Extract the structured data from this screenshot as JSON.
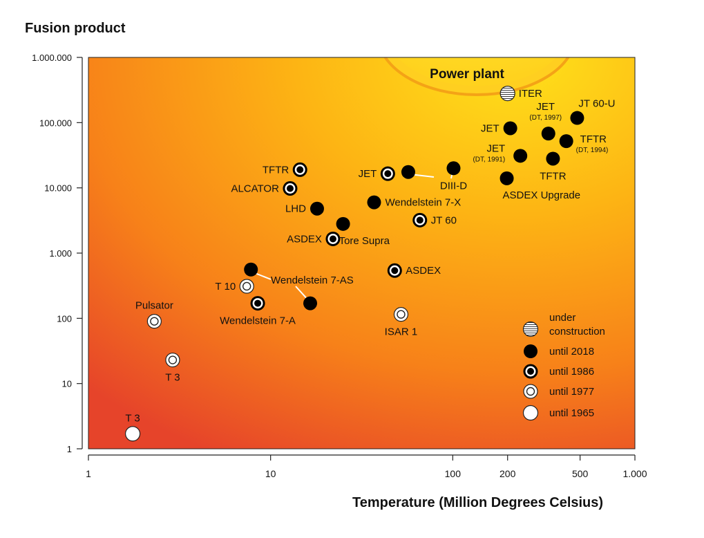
{
  "chart_data": {
    "type": "scatter",
    "title": "",
    "ylabel": "Fusion product",
    "xlabel": "Temperature  (Million Degrees Celsius)",
    "xscale": "log",
    "yscale": "log",
    "xlim": [
      1,
      1000
    ],
    "ylim": [
      1,
      1000000
    ],
    "x_ticks": [
      {
        "value": 1,
        "label": "1"
      },
      {
        "value": 10,
        "label": "10"
      },
      {
        "value": 100,
        "label": "100"
      },
      {
        "value": 200,
        "label": "200"
      },
      {
        "value": 500,
        "label": "500"
      },
      {
        "value": 1000,
        "label": "1.000"
      }
    ],
    "y_ticks": [
      {
        "value": 1,
        "label": "1"
      },
      {
        "value": 10,
        "label": "10"
      },
      {
        "value": 100,
        "label": "100"
      },
      {
        "value": 1000,
        "label": "1.000"
      },
      {
        "value": 10000,
        "label": "10.000"
      },
      {
        "value": 100000,
        "label": "100.000"
      },
      {
        "value": 1000000,
        "label": "1.000.000"
      }
    ],
    "region_label": "Power plant",
    "legend_placement": "bottom-right",
    "legend": [
      {
        "type": "construction",
        "label_lines": [
          "under",
          "construction"
        ]
      },
      {
        "type": "2018",
        "label_lines": [
          "until 2018"
        ]
      },
      {
        "type": "1986",
        "label_lines": [
          "until 1986"
        ]
      },
      {
        "type": "1977",
        "label_lines": [
          "until 1977"
        ]
      },
      {
        "type": "1965",
        "label_lines": [
          "until 1965"
        ]
      }
    ],
    "points": [
      {
        "label": "T 3",
        "x": 1.75,
        "y": 1.7,
        "type": "1965",
        "label_pos": "above"
      },
      {
        "label": "T 3",
        "x": 2.9,
        "y": 23,
        "type": "1977",
        "label_pos": "below"
      },
      {
        "label": "Pulsator",
        "x": 2.3,
        "y": 90,
        "type": "1977",
        "label_pos": "above"
      },
      {
        "label": "T 10",
        "x": 7.4,
        "y": 310,
        "type": "1977",
        "label_pos": "left"
      },
      {
        "label": "Wendelstein 7-A",
        "x": 8.5,
        "y": 170,
        "type": "1986",
        "label_pos": "below"
      },
      {
        "label": "",
        "x": 7.8,
        "y": 560,
        "type": "2018",
        "label_pos": "none"
      },
      {
        "label": "",
        "x": 16.5,
        "y": 170,
        "type": "2018",
        "label_pos": "none"
      },
      {
        "label": "Wendelstein 7-AS",
        "x": 0,
        "y": 0,
        "type": "label-only",
        "label_pos": "annotation"
      },
      {
        "label": "ASDEX",
        "x": 48,
        "y": 540,
        "type": "1986",
        "label_pos": "right"
      },
      {
        "label": "ISAR 1",
        "x": 52,
        "y": 115,
        "type": "1977",
        "label_pos": "below"
      },
      {
        "label": "TFTR",
        "x": 14.5,
        "y": 19000,
        "type": "1986",
        "label_pos": "left"
      },
      {
        "label": "ALCATOR",
        "x": 12.8,
        "y": 9800,
        "type": "1986",
        "label_pos": "left"
      },
      {
        "label": "LHD",
        "x": 18,
        "y": 4800,
        "type": "2018",
        "label_pos": "left"
      },
      {
        "label": "ASDEX",
        "x": 22,
        "y": 1650,
        "type": "1986",
        "label_pos": "left"
      },
      {
        "label": "Tore Supra",
        "x": 25,
        "y": 2800,
        "type": "2018",
        "label_pos": "below-right"
      },
      {
        "label": "Wendelstein 7-X",
        "x": 37,
        "y": 6000,
        "type": "2018",
        "label_pos": "right"
      },
      {
        "label": "JT 60",
        "x": 66,
        "y": 3200,
        "type": "1986",
        "label_pos": "right"
      },
      {
        "label": "JET",
        "x": 44,
        "y": 16500,
        "type": "1986",
        "label_pos": "left"
      },
      {
        "label": "",
        "x": 57,
        "y": 17500,
        "type": "2018",
        "label_pos": "none"
      },
      {
        "label": "DIII-D",
        "x": 101,
        "y": 20000,
        "type": "2018",
        "label_pos": "below"
      },
      {
        "label": "ASDEX Upgrade",
        "x": 198,
        "y": 14000,
        "type": "2018",
        "label_pos": "below-right"
      },
      {
        "label": "ITER",
        "x": 200,
        "y": 280000,
        "type": "construction",
        "label_pos": "right"
      },
      {
        "label": "JET",
        "x": 207,
        "y": 82000,
        "type": "2018",
        "label_pos": "left"
      },
      {
        "label": "JET",
        "x": 235,
        "y": 31000,
        "type": "2018",
        "label_pos": "left",
        "sublabel": "(DT, 1991)"
      },
      {
        "label": "JET",
        "x": 335,
        "y": 68000,
        "type": "2018",
        "label_pos": "above",
        "sublabel": "(DT, 1997)"
      },
      {
        "label": "JT 60-U",
        "x": 482,
        "y": 118000,
        "type": "2018",
        "label_pos": "above-right"
      },
      {
        "label": "TFTR",
        "x": 420,
        "y": 52000,
        "type": "2018",
        "label_pos": "right",
        "sublabel": "(DT, 1994)"
      },
      {
        "label": "TFTR",
        "x": 355,
        "y": 28000,
        "type": "2018",
        "label_pos": "below"
      }
    ]
  }
}
